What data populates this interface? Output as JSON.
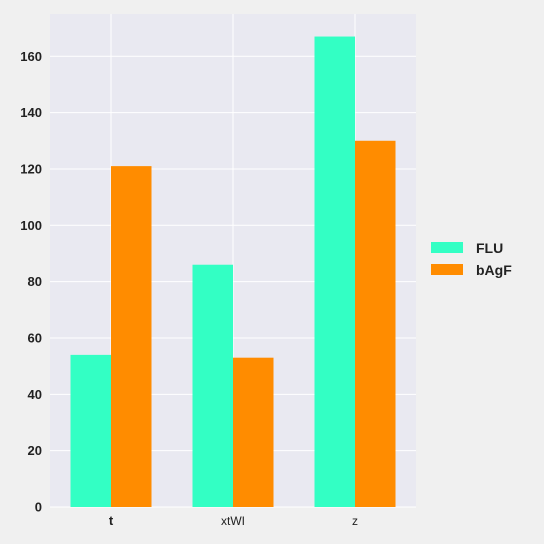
{
  "chart_data": {
    "type": "bar",
    "categories": [
      "t",
      "xtWI",
      "z"
    ],
    "category_label_styles": [
      "bold",
      "normal",
      "normal"
    ],
    "series": [
      {
        "name": "FLU",
        "color": "#33ffc4",
        "values": [
          54,
          86,
          167
        ]
      },
      {
        "name": "bAgF",
        "color": "#ff8c00",
        "values": [
          121,
          53,
          130
        ]
      }
    ],
    "y_ticks": [
      0,
      20,
      40,
      60,
      80,
      100,
      120,
      140,
      160
    ],
    "ylim": [
      0,
      175
    ],
    "grid": true,
    "legend_position": "right",
    "title": "",
    "xlabel": "",
    "ylabel": ""
  },
  "style": {
    "plot_background": "#e9e9f1",
    "page_background": "#f0f0f0",
    "grid_color": "#ffffff"
  }
}
